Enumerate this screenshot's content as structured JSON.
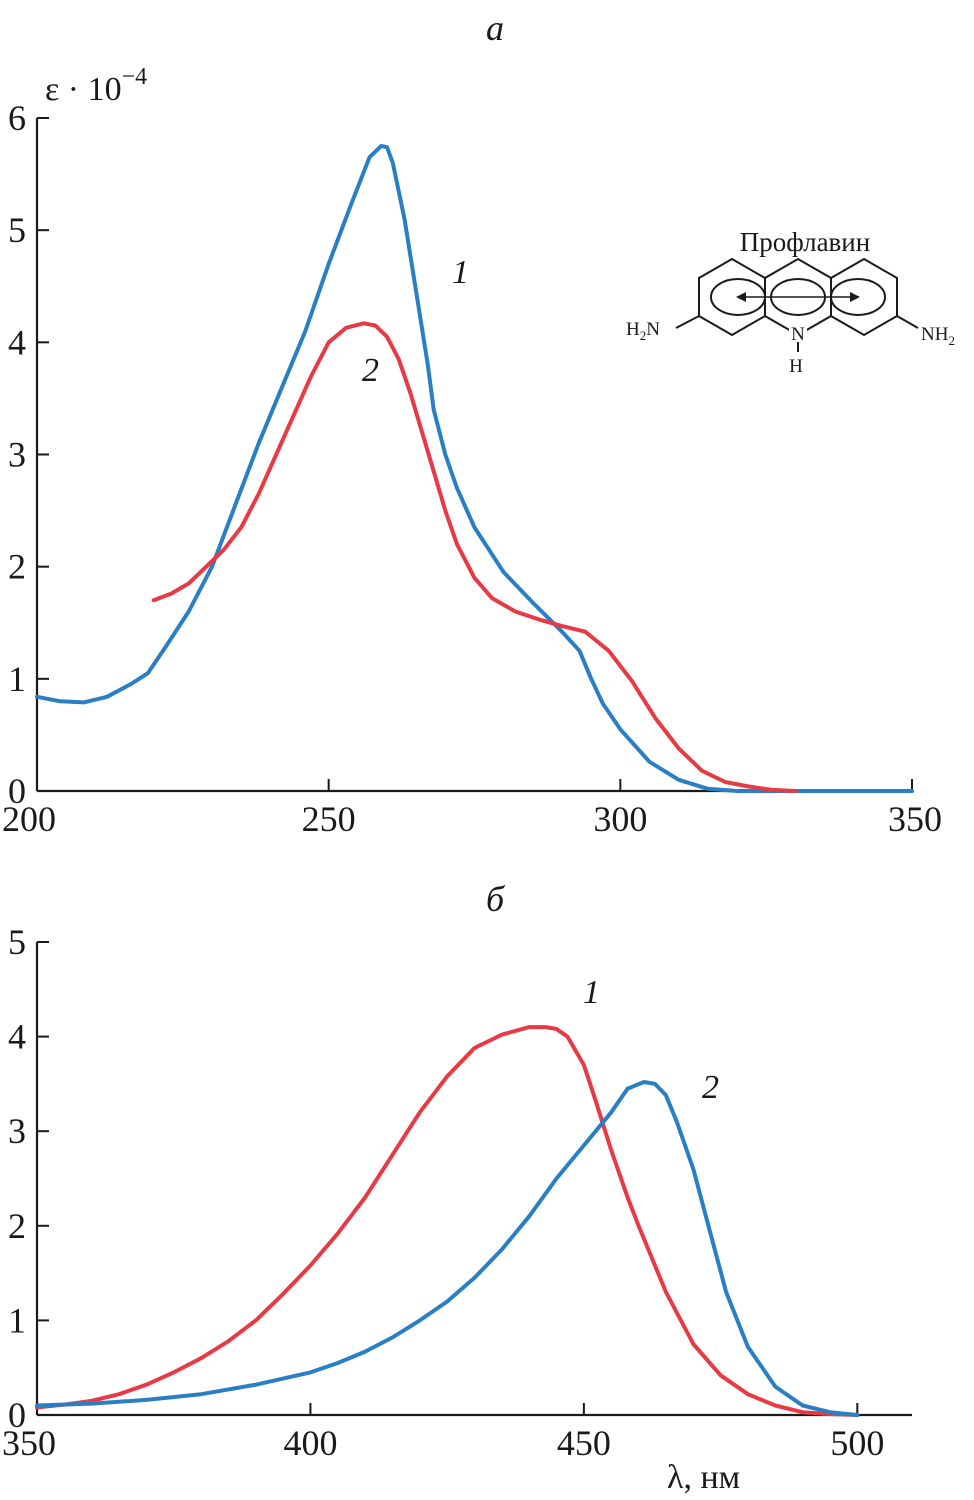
{
  "chart_data": [
    {
      "panel_label": "а",
      "type": "line",
      "y_axis_title": "ε · 10",
      "y_axis_title_exponent": "−4",
      "xlim": [
        200,
        350
      ],
      "ylim": [
        0,
        6
      ],
      "x_ticks": [
        "200",
        "250",
        "300",
        "350"
      ],
      "y_ticks": [
        "0",
        "1",
        "2",
        "3",
        "4",
        "5",
        "6"
      ],
      "grid": false,
      "series": [
        {
          "name": "1",
          "color": "#2a7fc4",
          "x": [
            200,
            204,
            208,
            212,
            216,
            219,
            222,
            226,
            230,
            234,
            238,
            242,
            246,
            250,
            254,
            257,
            259,
            260,
            261,
            263,
            265,
            267,
            268,
            270,
            272,
            275,
            280,
            285,
            290,
            293,
            295,
            297,
            300,
            305,
            310,
            315,
            320,
            330,
            350
          ],
          "y": [
            0.84,
            0.8,
            0.79,
            0.84,
            0.95,
            1.05,
            1.28,
            1.6,
            2.0,
            2.55,
            3.1,
            3.6,
            4.1,
            4.7,
            5.25,
            5.65,
            5.75,
            5.74,
            5.6,
            5.1,
            4.45,
            3.8,
            3.4,
            3.0,
            2.7,
            2.35,
            1.95,
            1.68,
            1.42,
            1.25,
            1.0,
            0.78,
            0.55,
            0.26,
            0.1,
            0.02,
            0.0,
            0.0,
            0.0
          ]
        },
        {
          "name": "2",
          "color": "#e83a44",
          "x": [
            220,
            223,
            226,
            229,
            232,
            235,
            238,
            241,
            244,
            247,
            250,
            253,
            256,
            258,
            260,
            262,
            264,
            266,
            268,
            270,
            272,
            275,
            278,
            282,
            286,
            290,
            294,
            298,
            302,
            306,
            310,
            314,
            318,
            322,
            326,
            330
          ],
          "y": [
            1.7,
            1.76,
            1.85,
            2.0,
            2.15,
            2.35,
            2.65,
            3.0,
            3.35,
            3.7,
            4.0,
            4.13,
            4.17,
            4.15,
            4.05,
            3.85,
            3.55,
            3.2,
            2.85,
            2.5,
            2.2,
            1.9,
            1.72,
            1.6,
            1.53,
            1.47,
            1.42,
            1.25,
            0.98,
            0.65,
            0.38,
            0.18,
            0.08,
            0.04,
            0.01,
            0.0
          ]
        }
      ],
      "annotation": {
        "title": "Профлавин",
        "left_group": "H",
        "left_group_sub": "2",
        "left_group_atom": "N",
        "right_group_atom": "NH",
        "right_group_sub": "2",
        "ring_n": "N",
        "ring_h": "H"
      }
    },
    {
      "panel_label": "б",
      "type": "line",
      "x_axis_title": "λ, нм",
      "xlim": [
        350,
        510
      ],
      "ylim": [
        0,
        5
      ],
      "x_ticks": [
        "350",
        "400",
        "450",
        "500"
      ],
      "y_ticks": [
        "0",
        "1",
        "2",
        "3",
        "4",
        "5"
      ],
      "grid": false,
      "series": [
        {
          "name": "1",
          "color": "#e83a44",
          "x": [
            350,
            355,
            360,
            365,
            370,
            375,
            380,
            385,
            390,
            395,
            400,
            405,
            410,
            415,
            420,
            425,
            430,
            435,
            440,
            443,
            445,
            447,
            450,
            452,
            455,
            458,
            460,
            465,
            470,
            475,
            480,
            485,
            490,
            495,
            500
          ],
          "y": [
            0.08,
            0.11,
            0.15,
            0.22,
            0.32,
            0.45,
            0.6,
            0.78,
            1.0,
            1.28,
            1.58,
            1.92,
            2.3,
            2.75,
            3.2,
            3.58,
            3.88,
            4.02,
            4.1,
            4.1,
            4.08,
            4.0,
            3.7,
            3.35,
            2.8,
            2.3,
            2.0,
            1.3,
            0.75,
            0.42,
            0.22,
            0.1,
            0.03,
            0.01,
            0.0
          ]
        },
        {
          "name": "2",
          "color": "#2a7fc4",
          "x": [
            350,
            360,
            370,
            380,
            390,
            400,
            405,
            410,
            415,
            420,
            425,
            430,
            435,
            440,
            445,
            450,
            455,
            458,
            461,
            463,
            465,
            467,
            470,
            473,
            476,
            480,
            485,
            490,
            495,
            500
          ],
          "y": [
            0.1,
            0.12,
            0.16,
            0.22,
            0.32,
            0.45,
            0.55,
            0.67,
            0.82,
            1.0,
            1.2,
            1.45,
            1.75,
            2.1,
            2.5,
            2.85,
            3.2,
            3.45,
            3.52,
            3.5,
            3.38,
            3.1,
            2.6,
            1.95,
            1.3,
            0.72,
            0.3,
            0.1,
            0.03,
            0.0
          ]
        }
      ]
    }
  ]
}
